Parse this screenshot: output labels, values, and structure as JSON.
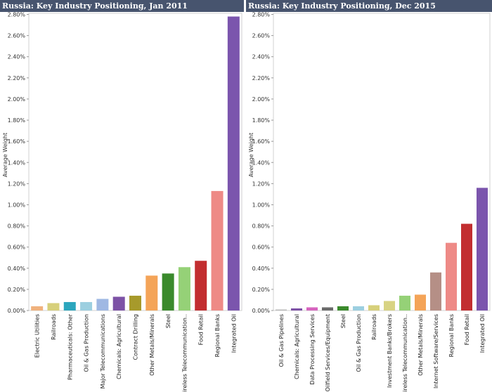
{
  "chart_data": [
    {
      "type": "bar",
      "title": "Russia:  Key Industry Positioning, Jan 2011",
      "ylabel": "Average Weight",
      "xlabel": "",
      "ylim": [
        0,
        0.0281
      ],
      "yticks": [
        "0.00%",
        "0.20%",
        "0.40%",
        "0.60%",
        "0.80%",
        "1.00%",
        "1.20%",
        "1.40%",
        "1.60%",
        "1.80%",
        "2.00%",
        "2.20%",
        "2.40%",
        "2.60%",
        "2.80%"
      ],
      "categories": [
        "Electric Utilities",
        "Railroads",
        "Pharmaceuticals: Other",
        "Oil & Gas Production",
        "Major Telecommunications",
        "Chemicals: Agricultural",
        "Contract Drilling",
        "Other Metals/Minerals",
        "Steel",
        "Wireless Telecommunication..",
        "Food Retail",
        "Regional Banks",
        "Integrated Oil"
      ],
      "values": [
        0.0004,
        0.0007,
        0.0008,
        0.0008,
        0.0011,
        0.0013,
        0.0014,
        0.0033,
        0.0035,
        0.0041,
        0.0047,
        0.0113,
        0.0278
      ],
      "colors": [
        "#f0b27d",
        "#d7d07b",
        "#2ca6bd",
        "#9ccfe0",
        "#9fb8e3",
        "#7d52a6",
        "#a79a2b",
        "#f4a458",
        "#3a8a2c",
        "#95d177",
        "#c22e30",
        "#ee8a86",
        "#7b55ad"
      ]
    },
    {
      "type": "bar",
      "title": "Russia:  Key Industry Positioning, Dec 2015",
      "ylabel": "Average Weight",
      "xlabel": "",
      "ylim": [
        0,
        0.0281
      ],
      "yticks": [
        "0.00%",
        "0.20%",
        "0.40%",
        "0.60%",
        "0.80%",
        "1.00%",
        "1.20%",
        "1.40%",
        "1.60%",
        "1.80%",
        "2.00%",
        "2.20%",
        "2.40%",
        "2.60%",
        "2.80%"
      ],
      "categories": [
        "Oil & Gas Pipelines",
        "Chemicals: Agricultural",
        "Data Processing Services",
        "Oilfield Services/Equipment",
        "Steel",
        "Oil & Gas Production",
        "Railroads",
        "Investment Banks/Brokers",
        "Wireless Telecommunication..",
        "Other Metals/Minerals",
        "Internet Software/Services",
        "Regional Banks",
        "Food Retail",
        "Integrated Oil"
      ],
      "values": [
        0.0001,
        0.0002,
        0.0003,
        0.0003,
        0.0004,
        0.0004,
        0.0005,
        0.0009,
        0.0014,
        0.0015,
        0.0036,
        0.0064,
        0.0082,
        0.0116
      ],
      "colors": [
        "#bcbcbc",
        "#7d52a6",
        "#d664be",
        "#6b6b6b",
        "#3a8a2c",
        "#9ccfe0",
        "#d7d07b",
        "#d8d383",
        "#95d177",
        "#f4a458",
        "#b58f86",
        "#ee8a86",
        "#c22e30",
        "#7b55ad"
      ]
    }
  ]
}
